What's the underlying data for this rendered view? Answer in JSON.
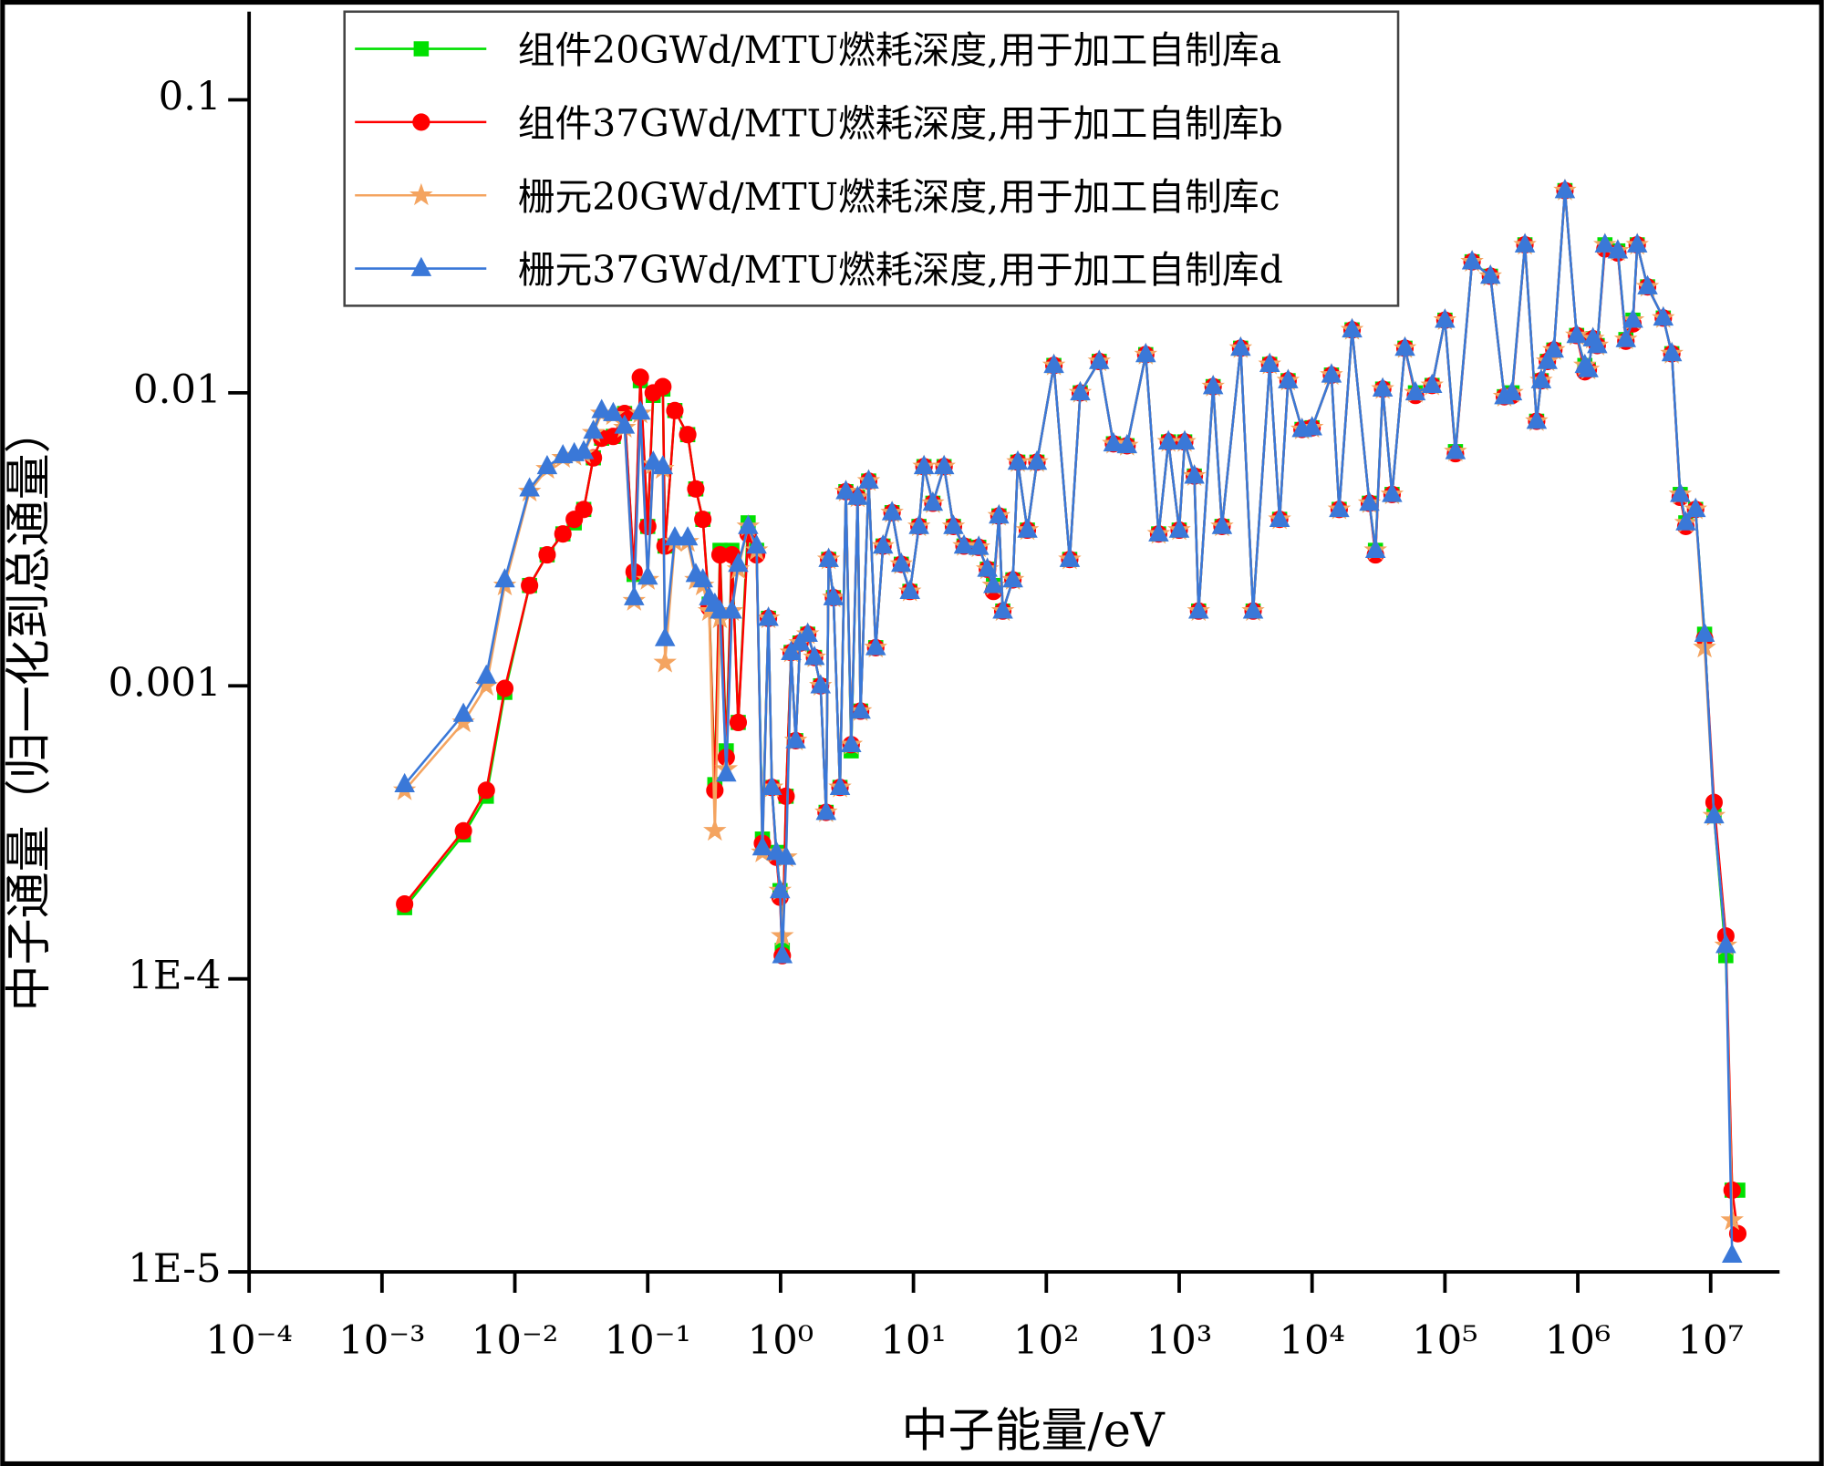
{
  "chart_data": {
    "type": "line",
    "xlabel": "中子能量/eV",
    "ylabel": "中子通量（归一化到总通量）",
    "xscale": "log",
    "yscale": "log",
    "xlim": [
      0.0001,
      33000000
    ],
    "ylim": [
      1e-05,
      0.2
    ],
    "xticks": [
      {
        "value": 0.0001,
        "label": "10⁻⁴"
      },
      {
        "value": 0.001,
        "label": "10⁻³"
      },
      {
        "value": 0.01,
        "label": "10⁻²"
      },
      {
        "value": 0.1,
        "label": "10⁻¹"
      },
      {
        "value": 1,
        "label": "10⁰"
      },
      {
        "value": 10,
        "label": "10¹"
      },
      {
        "value": 100,
        "label": "10²"
      },
      {
        "value": 1000,
        "label": "10³"
      },
      {
        "value": 10000,
        "label": "10⁴"
      },
      {
        "value": 100000,
        "label": "10⁵"
      },
      {
        "value": 1000000,
        "label": "10⁶"
      },
      {
        "value": 10000000,
        "label": "10⁷"
      }
    ],
    "yticks": [
      {
        "value": 1e-05,
        "label": "1E-5"
      },
      {
        "value": 0.0001,
        "label": "1E-4"
      },
      0.001,
      0.01,
      0.1
    ],
    "legend_position": "upper left",
    "x": [
      0.00148,
      0.0041,
      0.0061,
      0.0084,
      0.0129,
      0.0175,
      0.023,
      0.028,
      0.033,
      0.039,
      0.045,
      0.055,
      0.067,
      0.079,
      0.088,
      0.1,
      0.11,
      0.13,
      0.135,
      0.16,
      0.2,
      0.23,
      0.26,
      0.29,
      0.32,
      0.35,
      0.39,
      0.43,
      0.48,
      0.57,
      0.66,
      0.73,
      0.81,
      0.86,
      0.93,
      0.99,
      1.03,
      1.1,
      1.2,
      1.3,
      1.4,
      1.6,
      1.8,
      2.0,
      2.2,
      2.3,
      2.5,
      2.8,
      3.1,
      3.4,
      3.8,
      4.0,
      4.6,
      5.2,
      5.9,
      6.9,
      8.1,
      9.4,
      11,
      12,
      14,
      17,
      20,
      24,
      31,
      36,
      40,
      44,
      47,
      56,
      61,
      72,
      85,
      114,
      150,
      180,
      250,
      320,
      405,
      560,
      700,
      830,
      1000,
      1100,
      1300,
      1400,
      1800,
      2100,
      2900,
      3600,
      4800,
      5700,
      6600,
      8400,
      10000,
      14000,
      16000,
      20000,
      27000,
      30000,
      34000,
      40000,
      50000,
      60000,
      80000,
      100000,
      120000,
      160000,
      220000,
      280000,
      320000,
      400000,
      490000,
      530000,
      590000,
      660000,
      800000,
      980000,
      1130000,
      1200000,
      1300000,
      1400000,
      1600000,
      2000000,
      2300000,
      2600000,
      2800000,
      3350000,
      4400000,
      5100000,
      5900000,
      6500000,
      7700000,
      9000000,
      10600000,
      13000000,
      14500000,
      16000000
    ],
    "series": [
      {
        "name": "组件20GWd/MTU燃耗深度,用于加工自制库a",
        "color": "#00e000",
        "marker": "square",
        "values": [
          0.000175,
          0.00031,
          0.00042,
          0.00095,
          0.0022,
          0.0028,
          0.0033,
          0.0036,
          0.004,
          0.006,
          0.007,
          0.0071,
          0.0085,
          0.0024,
          0.011,
          0.0035,
          0.0098,
          0.0103,
          0.003,
          0.0087,
          0.0072,
          0.0047,
          0.0037,
          0.0019,
          0.00046,
          0.0029,
          0.0006,
          0.0029,
          0.00075,
          0.0036,
          0.0029,
          0.0003,
          0.0017,
          0.00045,
          0.00027,
          0.0002,
          0.000125,
          0.00042,
          0.0013,
          0.00065,
          0.0014,
          0.0015,
          0.00125,
          0.001,
          0.00037,
          0.0027,
          0.002,
          0.00045,
          0.0046,
          0.0006,
          0.0044,
          0.00082,
          0.005,
          0.00135,
          0.003,
          0.0039,
          0.0026,
          0.0021,
          0.0035,
          0.0056,
          0.0042,
          0.0056,
          0.0035,
          0.003,
          0.00297,
          0.0025,
          0.0022,
          0.0038,
          0.0018,
          0.0023,
          0.0058,
          0.0034,
          0.0058,
          0.0124,
          0.0027,
          0.01,
          0.0128,
          0.0067,
          0.0066,
          0.0135,
          0.0033,
          0.0068,
          0.0034,
          0.0068,
          0.0052,
          0.0018,
          0.0105,
          0.0035,
          0.0142,
          0.0018,
          0.0125,
          0.0037,
          0.011,
          0.0075,
          0.0076,
          0.0115,
          0.004,
          0.0164,
          0.0042,
          0.0029,
          0.0103,
          0.0045,
          0.0142,
          0.01,
          0.0106,
          0.0177,
          0.0063,
          0.028,
          0.025,
          0.0097,
          0.01,
          0.032,
          0.008,
          0.011,
          0.0128,
          0.014,
          0.049,
          0.0157,
          0.0124,
          0.012,
          0.0153,
          0.0145,
          0.032,
          0.0305,
          0.0152,
          0.0177,
          0.032,
          0.023,
          0.018,
          0.0136,
          0.0045,
          0.0036,
          0.004,
          0.0015,
          0.00036,
          0.00012,
          1.9e-05,
          1.9e-05
        ]
      },
      {
        "name": "组件37GWd/MTU燃耗深度,用于加工自制库b",
        "color": "#ff0000",
        "marker": "circle",
        "values": [
          0.00018,
          0.00032,
          0.00044,
          0.00098,
          0.0022,
          0.0028,
          0.0033,
          0.0037,
          0.004,
          0.006,
          0.007,
          0.0071,
          0.0085,
          0.00245,
          0.0113,
          0.0035,
          0.01,
          0.0105,
          0.003,
          0.0087,
          0.0072,
          0.0047,
          0.0037,
          0.00185,
          0.00044,
          0.0028,
          0.00057,
          0.0028,
          0.00075,
          0.0033,
          0.0028,
          0.00029,
          0.0017,
          0.00045,
          0.00026,
          0.00019,
          0.00012,
          0.00042,
          0.0013,
          0.00065,
          0.0014,
          0.0015,
          0.00125,
          0.001,
          0.00037,
          0.0027,
          0.002,
          0.00045,
          0.0046,
          0.00063,
          0.0044,
          0.00082,
          0.005,
          0.00135,
          0.003,
          0.0039,
          0.0026,
          0.0021,
          0.0035,
          0.0056,
          0.0042,
          0.0056,
          0.0035,
          0.003,
          0.00297,
          0.0025,
          0.0021,
          0.0038,
          0.0018,
          0.0023,
          0.0058,
          0.0034,
          0.0058,
          0.0124,
          0.0027,
          0.01,
          0.0128,
          0.0067,
          0.0066,
          0.0135,
          0.0033,
          0.0068,
          0.0034,
          0.0068,
          0.0052,
          0.0018,
          0.0105,
          0.0035,
          0.0142,
          0.0018,
          0.0125,
          0.0037,
          0.011,
          0.0075,
          0.0076,
          0.0115,
          0.004,
          0.0164,
          0.0042,
          0.0028,
          0.0103,
          0.0045,
          0.0142,
          0.0098,
          0.0106,
          0.0177,
          0.0062,
          0.028,
          0.025,
          0.0097,
          0.0098,
          0.032,
          0.008,
          0.011,
          0.0128,
          0.014,
          0.049,
          0.0157,
          0.0118,
          0.012,
          0.0153,
          0.0145,
          0.031,
          0.03,
          0.015,
          0.0172,
          0.032,
          0.023,
          0.018,
          0.0136,
          0.0044,
          0.0035,
          0.004,
          0.00145,
          0.0004,
          0.00014,
          1.9e-05,
          1.35e-05
        ]
      },
      {
        "name": "栅元20GWd/MTU燃耗深度,用于加工自制库c",
        "color": "#f4a460",
        "marker": "star",
        "values": [
          0.00044,
          0.00075,
          0.001,
          0.0022,
          0.0046,
          0.0055,
          0.006,
          0.0061,
          0.0062,
          0.0073,
          0.0085,
          0.0084,
          0.0076,
          0.00195,
          0.0085,
          0.0023,
          0.0057,
          0.0055,
          0.0012,
          0.0031,
          0.0031,
          0.0023,
          0.0022,
          0.0018,
          0.00032,
          0.0017,
          0.00052,
          0.0018,
          0.0025,
          0.0035,
          0.0029,
          0.00027,
          0.0017,
          0.00045,
          0.00027,
          0.0002,
          0.00014,
          0.00026,
          0.0013,
          0.00065,
          0.0014,
          0.0015,
          0.00125,
          0.001,
          0.00037,
          0.0027,
          0.002,
          0.00045,
          0.0046,
          0.00063,
          0.0044,
          0.00082,
          0.005,
          0.00135,
          0.003,
          0.0039,
          0.0026,
          0.0021,
          0.0035,
          0.0056,
          0.0042,
          0.0056,
          0.0035,
          0.003,
          0.00297,
          0.0025,
          0.0022,
          0.0038,
          0.0018,
          0.0023,
          0.0058,
          0.0034,
          0.0058,
          0.0124,
          0.0027,
          0.01,
          0.0128,
          0.0067,
          0.0066,
          0.0135,
          0.0033,
          0.0068,
          0.0034,
          0.0068,
          0.0052,
          0.0018,
          0.0105,
          0.0035,
          0.0142,
          0.0018,
          0.0125,
          0.0037,
          0.011,
          0.0075,
          0.0076,
          0.0115,
          0.004,
          0.0164,
          0.0042,
          0.0029,
          0.0103,
          0.0045,
          0.0142,
          0.01,
          0.0106,
          0.0177,
          0.0063,
          0.028,
          0.025,
          0.0097,
          0.01,
          0.032,
          0.008,
          0.011,
          0.0128,
          0.014,
          0.049,
          0.0157,
          0.0124,
          0.012,
          0.0153,
          0.0145,
          0.032,
          0.0305,
          0.0152,
          0.0177,
          0.032,
          0.023,
          0.018,
          0.0136,
          0.0045,
          0.0036,
          0.004,
          0.00135,
          0.00036,
          0.00013,
          1.5e-05,
          null
        ]
      },
      {
        "name": "栅元37GWd/MTU燃耗深度,用于加工自制库d",
        "color": "#3a78d8",
        "marker": "triangle",
        "values": [
          0.00046,
          0.0008,
          0.00108,
          0.0023,
          0.0047,
          0.0056,
          0.0061,
          0.0062,
          0.0063,
          0.0074,
          0.0087,
          0.0085,
          0.0077,
          0.002,
          0.0086,
          0.00235,
          0.0058,
          0.0056,
          0.00145,
          0.0032,
          0.0032,
          0.0024,
          0.0023,
          0.002,
          0.0019,
          0.0018,
          0.0005,
          0.0018,
          0.0026,
          0.0035,
          0.003,
          0.00028,
          0.0017,
          0.00045,
          0.00027,
          0.0002,
          0.00012,
          0.00026,
          0.0013,
          0.00065,
          0.0014,
          0.0015,
          0.00125,
          0.001,
          0.00037,
          0.0027,
          0.002,
          0.00045,
          0.0046,
          0.00063,
          0.0044,
          0.00082,
          0.005,
          0.00135,
          0.003,
          0.0039,
          0.0026,
          0.0021,
          0.0035,
          0.0056,
          0.0042,
          0.0056,
          0.0035,
          0.003,
          0.00297,
          0.0025,
          0.0022,
          0.0038,
          0.0018,
          0.0023,
          0.0058,
          0.0034,
          0.0058,
          0.0124,
          0.0027,
          0.01,
          0.0128,
          0.0067,
          0.0066,
          0.0135,
          0.0033,
          0.0068,
          0.0034,
          0.0068,
          0.0052,
          0.0018,
          0.0105,
          0.0035,
          0.0142,
          0.0018,
          0.0125,
          0.0037,
          0.011,
          0.0075,
          0.0076,
          0.0115,
          0.004,
          0.0164,
          0.0042,
          0.0029,
          0.0103,
          0.0045,
          0.0142,
          0.01,
          0.0106,
          0.0177,
          0.0063,
          0.028,
          0.025,
          0.0097,
          0.01,
          0.032,
          0.008,
          0.011,
          0.0128,
          0.014,
          0.049,
          0.0157,
          0.0124,
          0.012,
          0.0153,
          0.0145,
          0.032,
          0.0305,
          0.0152,
          0.0177,
          0.032,
          0.023,
          0.018,
          0.0136,
          0.0045,
          0.0036,
          0.004,
          0.0015,
          0.00036,
          0.00013,
          1.14e-05,
          null
        ]
      }
    ]
  }
}
